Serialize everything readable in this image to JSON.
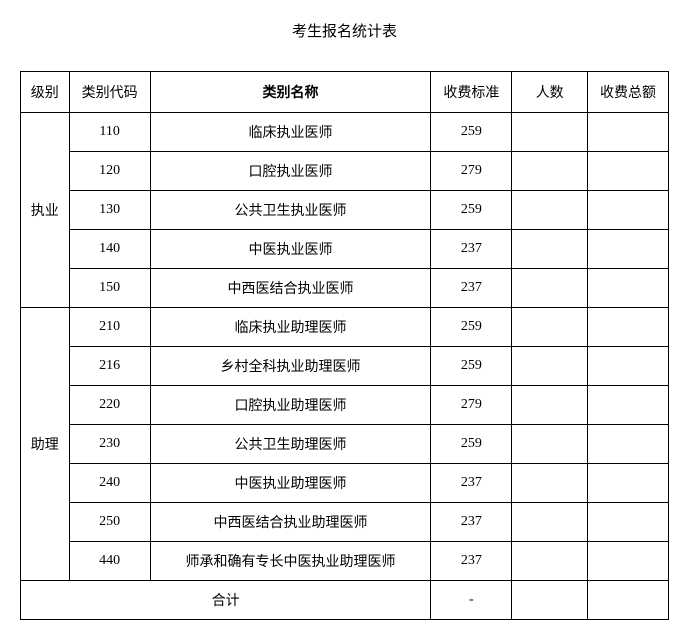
{
  "title": "考生报名统计表",
  "headers": {
    "level": "级别",
    "code": "类别代码",
    "name": "类别名称",
    "fee_standard": "收费标准",
    "count": "人数",
    "total": "收费总额"
  },
  "groups": [
    {
      "level_label": "执业",
      "rows": [
        {
          "code": "110",
          "name": "临床执业医师",
          "fee": "259",
          "count": "",
          "total": ""
        },
        {
          "code": "120",
          "name": "口腔执业医师",
          "fee": "279",
          "count": "",
          "total": ""
        },
        {
          "code": "130",
          "name": "公共卫生执业医师",
          "fee": "259",
          "count": "",
          "total": ""
        },
        {
          "code": "140",
          "name": "中医执业医师",
          "fee": "237",
          "count": "",
          "total": ""
        },
        {
          "code": "150",
          "name": "中西医结合执业医师",
          "fee": "237",
          "count": "",
          "total": ""
        }
      ]
    },
    {
      "level_label": "助理",
      "rows": [
        {
          "code": "210",
          "name": "临床执业助理医师",
          "fee": "259",
          "count": "",
          "total": ""
        },
        {
          "code": "216",
          "name": "乡村全科执业助理医师",
          "fee": "259",
          "count": "",
          "total": ""
        },
        {
          "code": "220",
          "name": "口腔执业助理医师",
          "fee": "279",
          "count": "",
          "total": ""
        },
        {
          "code": "230",
          "name": "公共卫生助理医师",
          "fee": "259",
          "count": "",
          "total": ""
        },
        {
          "code": "240",
          "name": "中医执业助理医师",
          "fee": "237",
          "count": "",
          "total": ""
        },
        {
          "code": "250",
          "name": "中西医结合执业助理医师",
          "fee": "237",
          "count": "",
          "total": ""
        },
        {
          "code": "440",
          "name": "师承和确有专长中医执业助理医师",
          "fee": "237",
          "count": "",
          "total": ""
        }
      ]
    }
  ],
  "footer": {
    "label": "合计",
    "fee": "-",
    "count": "",
    "total": ""
  }
}
